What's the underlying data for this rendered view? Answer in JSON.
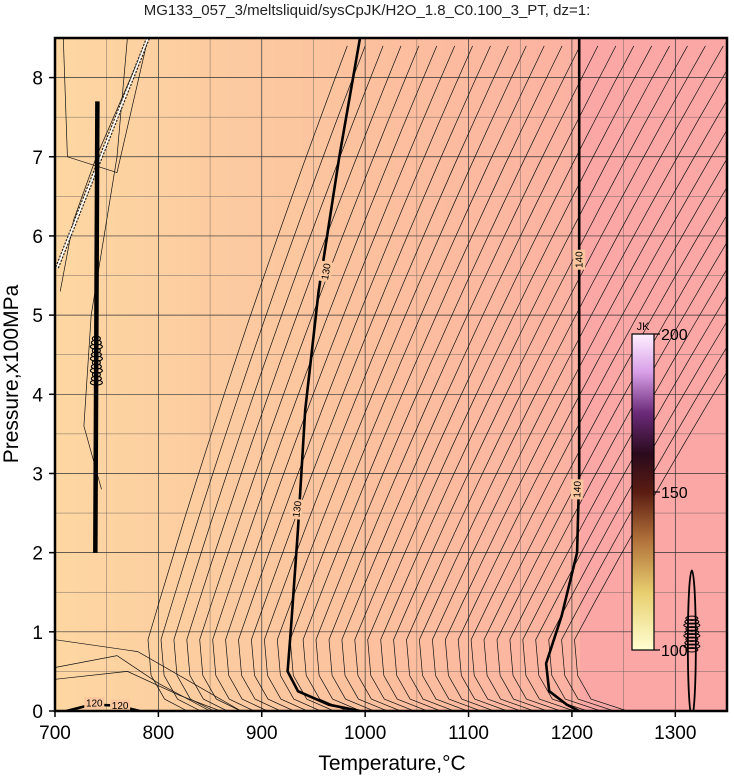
{
  "chart_data": {
    "type": "heatmap",
    "title": "MG133_057_3/meltsliquid/sysCpJK/H2O_1.8_C0.100_3_PT, dz=1:",
    "xlabel": "Temperature,°C",
    "ylabel": "Pressure,x100MPa",
    "xlim": [
      700,
      1350
    ],
    "ylim": [
      0,
      8.5
    ],
    "x_ticks": [
      "700",
      "800",
      "900",
      "1000",
      "1100",
      "1200",
      "1300"
    ],
    "y_ticks": [
      "0",
      "1",
      "2",
      "3",
      "4",
      "5",
      "6",
      "7",
      "8"
    ],
    "grid": true,
    "colorbar": {
      "unit": "JK",
      "min": 100,
      "max": 200,
      "tick_labels": [
        "100",
        "150",
        "200"
      ],
      "placement": "right-inside"
    },
    "contour_interval": 1,
    "annotated_contours": [
      {
        "level": 120,
        "labels": [
          "120",
          "120"
        ]
      },
      {
        "level": 130,
        "labels": [
          "130",
          "130"
        ]
      },
      {
        "level": 140,
        "labels": [
          "140",
          "140"
        ]
      }
    ],
    "fill_colors": {
      "low": "#fdd7a2",
      "mid": "#fcbf9e",
      "high": "#fba7a5"
    }
  }
}
